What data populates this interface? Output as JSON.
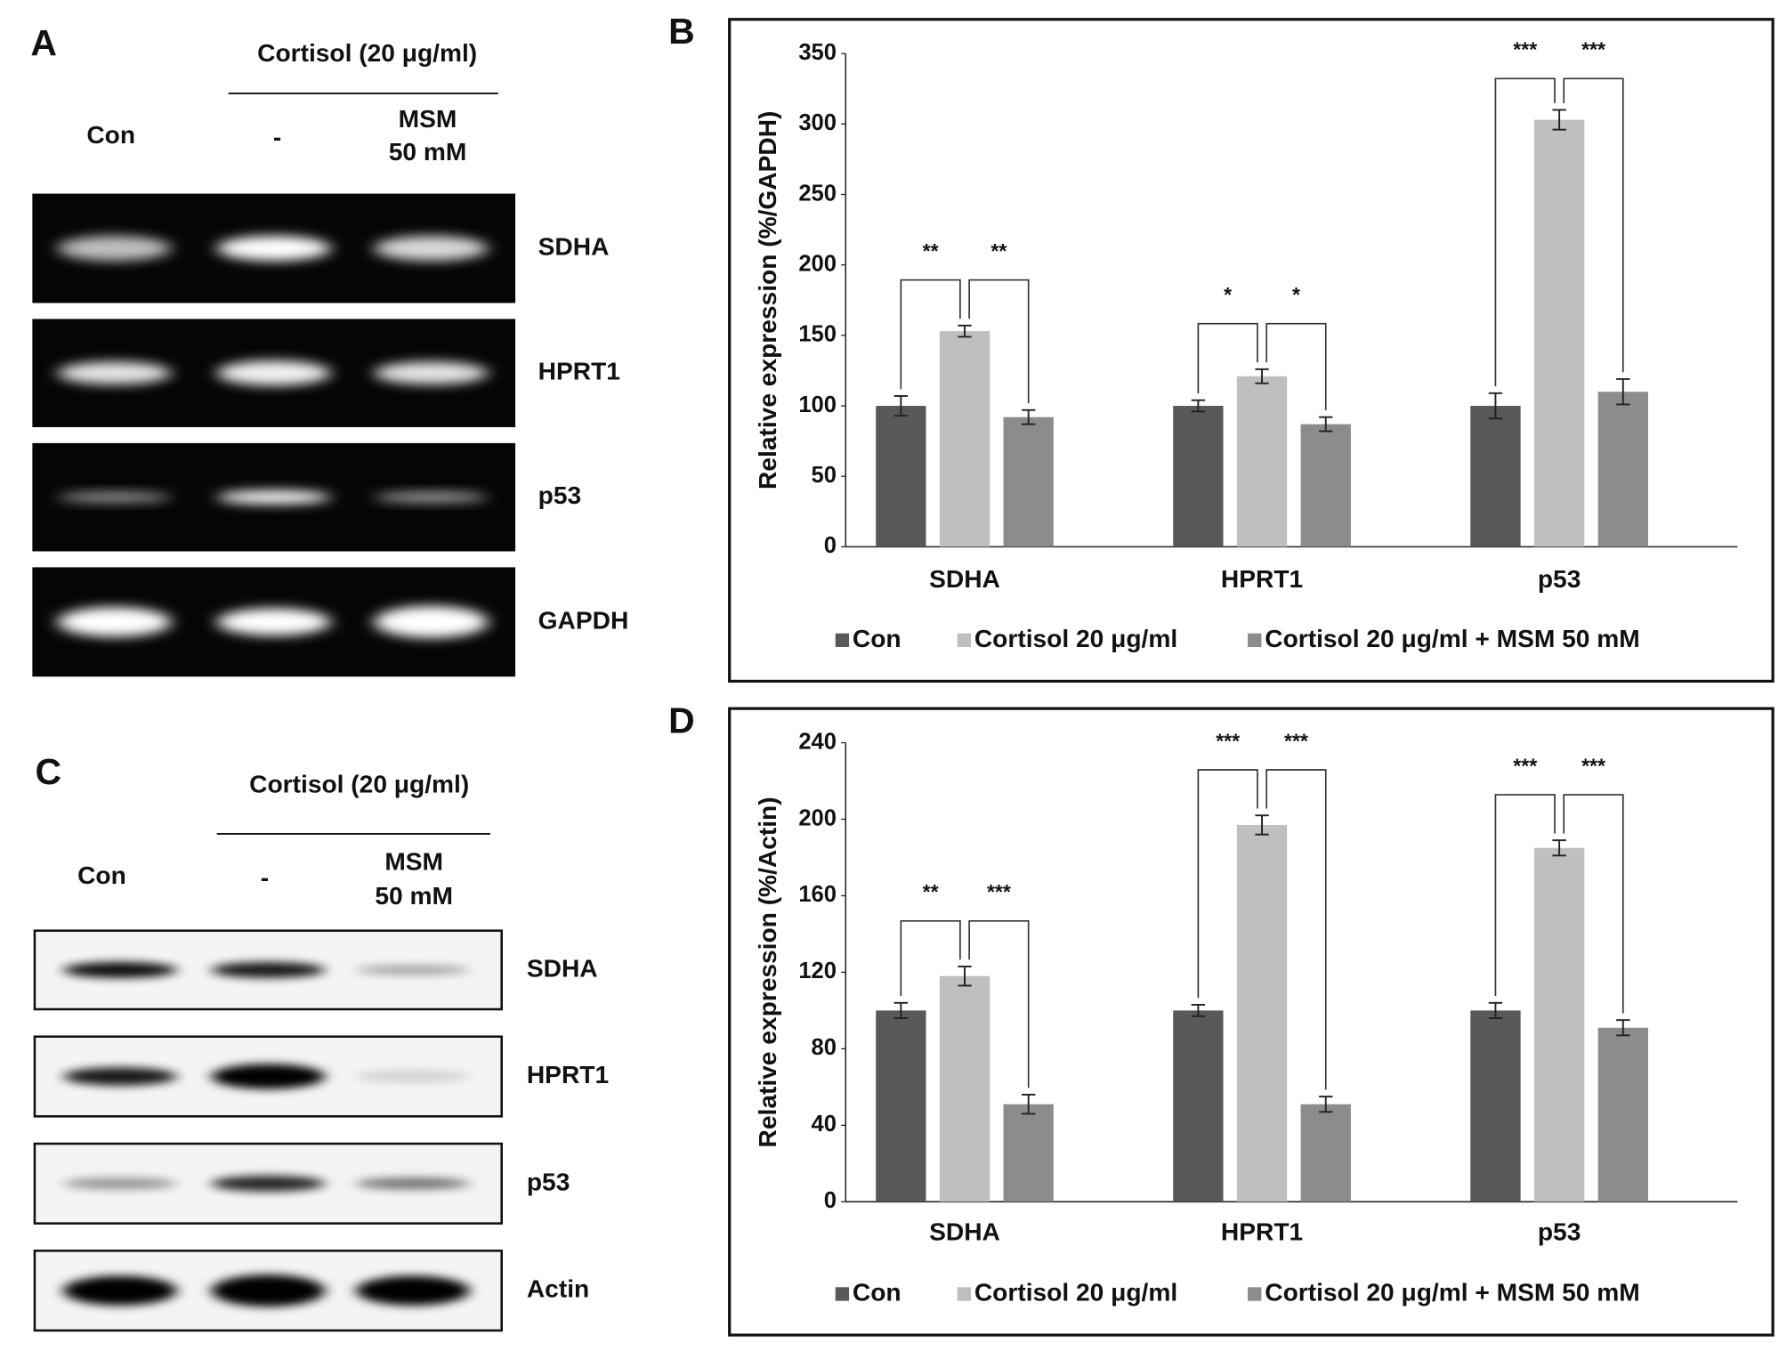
{
  "blots": [
    {
      "panel": "A",
      "header": "Cortisol (20 μg/ml)",
      "lanes": [
        [
          "Con"
        ],
        [
          "-"
        ],
        [
          "MSM",
          "50 mM"
        ]
      ],
      "rows": [
        "SDHA",
        "HPRT1",
        "p53",
        "GAPDH"
      ]
    },
    {
      "panel": "C",
      "header": "Cortisol (20 μg/ml)",
      "lanes": [
        [
          "Con"
        ],
        [
          "-"
        ],
        [
          "MSM",
          "50 mM"
        ]
      ],
      "rows": [
        "SDHA",
        "HPRT1",
        "p53",
        "Actin"
      ]
    }
  ],
  "chart_data": [
    {
      "type": "bar",
      "panel": "B",
      "y_label": "Relative expression (%/GAPDH)",
      "categories": [
        "SDHA",
        "HPRT1",
        "p53"
      ],
      "series": [
        {
          "name": "Con",
          "color": "#595959",
          "values": [
            100,
            100,
            100
          ],
          "errors": [
            7,
            4,
            9
          ]
        },
        {
          "name": "Cortisol 20 μg/ml",
          "color": "#bfbfbf",
          "values": [
            153,
            121,
            303
          ],
          "errors": [
            4,
            5,
            7
          ]
        },
        {
          "name": "Cortisol 20 μg/ml + MSM 50 mM",
          "color": "#8c8c8c",
          "values": [
            92,
            87,
            110
          ],
          "errors": [
            5,
            5,
            9
          ]
        }
      ],
      "significance": [
        [
          "**",
          "**"
        ],
        [
          "*",
          "*"
        ],
        [
          "***",
          "***"
        ]
      ],
      "ylim": [
        0,
        350
      ],
      "yticks": [
        0,
        50,
        100,
        150,
        200,
        250,
        300,
        350
      ]
    },
    {
      "type": "bar",
      "panel": "D",
      "y_label": "Relative expression (%/Actin)",
      "categories": [
        "SDHA",
        "HPRT1",
        "p53"
      ],
      "series": [
        {
          "name": "Con",
          "color": "#595959",
          "values": [
            100,
            100,
            100
          ],
          "errors": [
            4,
            3,
            4
          ]
        },
        {
          "name": "Cortisol 20 μg/ml",
          "color": "#bfbfbf",
          "values": [
            118,
            197,
            185
          ],
          "errors": [
            5,
            5,
            4
          ]
        },
        {
          "name": "Cortisol 20 μg/ml + MSM 50 mM",
          "color": "#8c8c8c",
          "values": [
            51,
            51,
            91
          ],
          "errors": [
            5,
            4,
            4
          ]
        }
      ],
      "significance": [
        [
          "**",
          "***"
        ],
        [
          "***",
          "***"
        ],
        [
          "***",
          "***"
        ]
      ],
      "ylim": [
        0,
        240
      ],
      "yticks": [
        0,
        40,
        80,
        120,
        160,
        200,
        240
      ]
    }
  ]
}
